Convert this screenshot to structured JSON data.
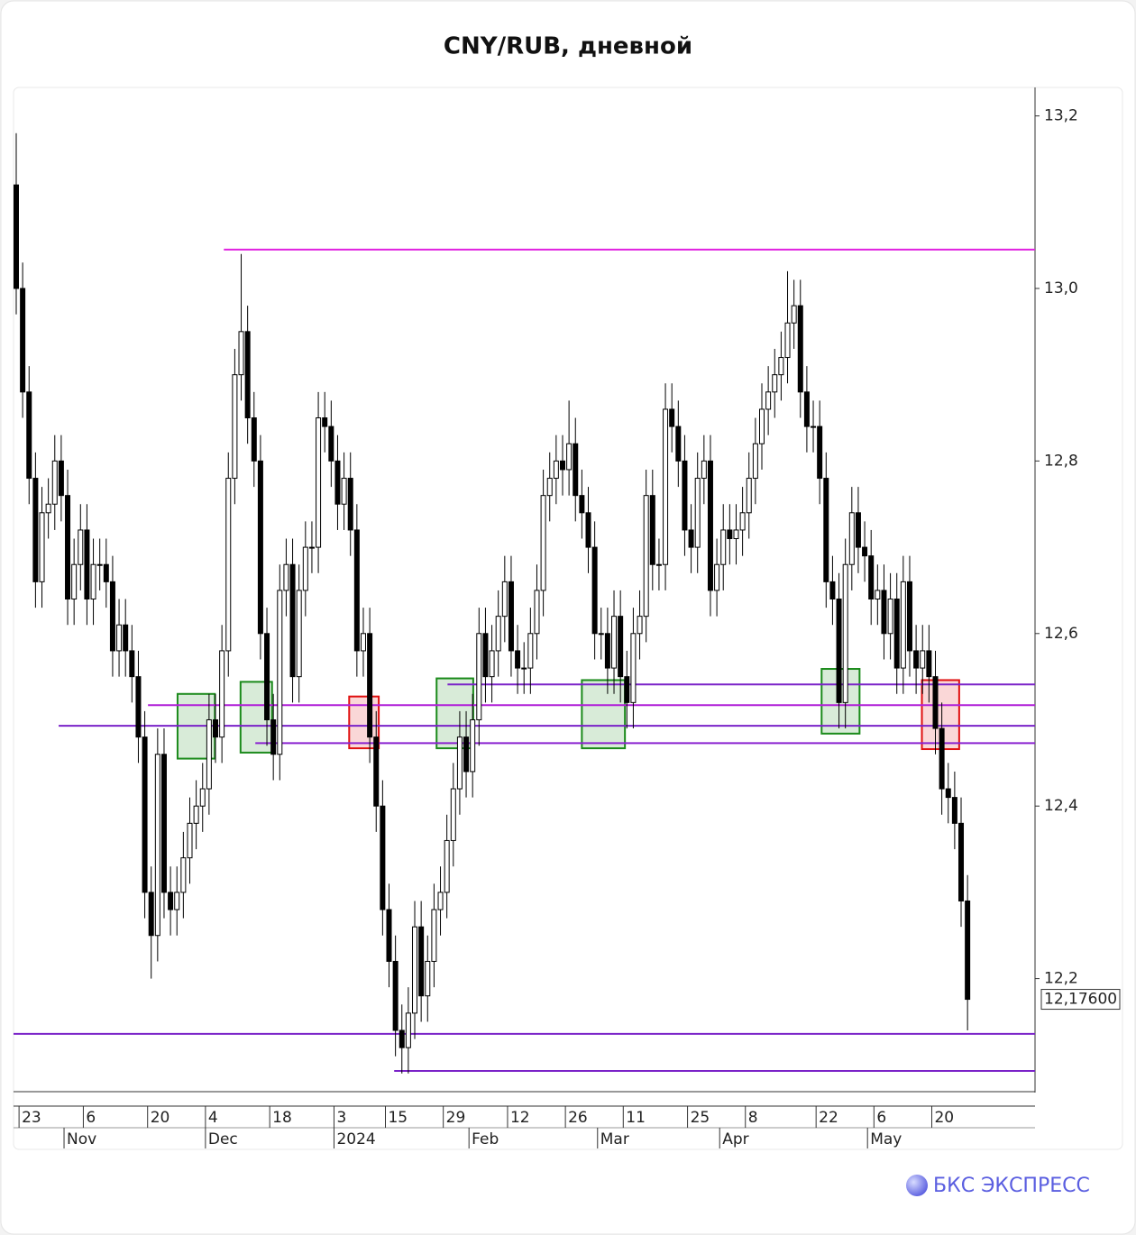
{
  "chart_data": {
    "type": "candlestick",
    "title": "CNY/RUB, дневной",
    "brand": "БКС ЭКСПРЕСС",
    "open": [
      13.12,
      13.0,
      12.88,
      12.78,
      12.66,
      12.74,
      12.75,
      12.8,
      12.76,
      12.64,
      12.68,
      12.72,
      12.64,
      12.68,
      12.68,
      12.66,
      12.58,
      12.61,
      12.58,
      12.55,
      12.48,
      12.3,
      12.25,
      12.46,
      12.3,
      12.28,
      12.3,
      12.34,
      12.38,
      12.4,
      12.42,
      12.5,
      12.48,
      12.58,
      12.78,
      12.9,
      12.95,
      12.85,
      12.8,
      12.6,
      12.5,
      12.46,
      12.65,
      12.68,
      12.55,
      12.65,
      12.7,
      12.7,
      12.85,
      12.84,
      12.8,
      12.75,
      12.78,
      12.72,
      12.58,
      12.6,
      12.48,
      12.4,
      12.28,
      12.22,
      12.14,
      12.12,
      12.16,
      12.26,
      12.18,
      12.22,
      12.28,
      12.3,
      12.36,
      12.42,
      12.48,
      12.44,
      12.5,
      12.6,
      12.55,
      12.58,
      12.62,
      12.66,
      12.58,
      12.56,
      12.56,
      12.6,
      12.65,
      12.76,
      12.78,
      12.8,
      12.79,
      12.82,
      12.76,
      12.74,
      12.7,
      12.6,
      12.6,
      12.56,
      12.62,
      12.55,
      12.52,
      12.6,
      12.62,
      12.76,
      12.68,
      12.68,
      12.86,
      12.84,
      12.8,
      12.72,
      12.7,
      12.78,
      12.8,
      12.65,
      12.68,
      12.72,
      12.71,
      12.72,
      12.74,
      12.78,
      12.82,
      12.86,
      12.88,
      12.9,
      12.92,
      12.96,
      12.98,
      12.88,
      12.84,
      12.84,
      12.78,
      12.66,
      12.64,
      12.52,
      12.68,
      12.74,
      12.7,
      12.69,
      12.64,
      12.65,
      12.6,
      12.64,
      12.56,
      12.66,
      12.58,
      12.56,
      12.58,
      12.55,
      12.49,
      12.42,
      12.41,
      12.38,
      12.29
    ],
    "high": [
      13.18,
      13.03,
      12.91,
      12.81,
      12.77,
      12.78,
      12.83,
      12.83,
      12.79,
      12.71,
      12.75,
      12.75,
      12.71,
      12.71,
      12.71,
      12.69,
      12.64,
      12.64,
      12.61,
      12.58,
      12.51,
      12.33,
      12.49,
      12.49,
      12.33,
      12.33,
      12.37,
      12.41,
      12.43,
      12.45,
      12.53,
      12.53,
      12.61,
      12.81,
      12.93,
      13.04,
      12.98,
      12.88,
      12.83,
      12.63,
      12.53,
      12.68,
      12.71,
      12.71,
      12.68,
      12.73,
      12.73,
      12.88,
      12.88,
      12.87,
      12.83,
      12.81,
      12.81,
      12.75,
      12.63,
      12.63,
      12.51,
      12.43,
      12.31,
      12.25,
      12.17,
      12.19,
      12.29,
      12.29,
      12.25,
      12.31,
      12.33,
      12.39,
      12.45,
      12.51,
      12.51,
      12.53,
      12.63,
      12.63,
      12.61,
      12.65,
      12.69,
      12.69,
      12.61,
      12.59,
      12.63,
      12.68,
      12.79,
      12.81,
      12.83,
      12.83,
      12.87,
      12.85,
      12.79,
      12.77,
      12.73,
      12.63,
      12.63,
      12.65,
      12.65,
      12.58,
      12.63,
      12.65,
      12.79,
      12.79,
      12.71,
      12.89,
      12.89,
      12.87,
      12.83,
      12.75,
      12.81,
      12.83,
      12.83,
      12.71,
      12.75,
      12.75,
      12.75,
      12.77,
      12.81,
      12.85,
      12.89,
      12.91,
      12.93,
      12.95,
      13.02,
      13.01,
      13.01,
      12.91,
      12.87,
      12.87,
      12.81,
      12.69,
      12.67,
      12.71,
      12.77,
      12.77,
      12.73,
      12.72,
      12.68,
      12.68,
      12.67,
      12.67,
      12.69,
      12.69,
      12.61,
      12.61,
      12.61,
      12.58,
      12.52,
      12.45,
      12.44,
      12.41,
      12.32
    ],
    "low": [
      12.97,
      12.85,
      12.75,
      12.63,
      12.63,
      12.71,
      12.72,
      12.73,
      12.61,
      12.61,
      12.65,
      12.61,
      12.61,
      12.65,
      12.63,
      12.55,
      12.55,
      12.55,
      12.52,
      12.45,
      12.27,
      12.2,
      12.22,
      12.27,
      12.25,
      12.25,
      12.27,
      12.31,
      12.35,
      12.37,
      12.39,
      12.45,
      12.45,
      12.55,
      12.75,
      12.87,
      12.82,
      12.77,
      12.57,
      12.47,
      12.43,
      12.43,
      12.62,
      12.52,
      12.52,
      12.62,
      12.67,
      12.67,
      12.81,
      12.77,
      12.72,
      12.72,
      12.69,
      12.55,
      12.55,
      12.45,
      12.37,
      12.25,
      12.19,
      12.11,
      12.09,
      12.09,
      12.13,
      12.15,
      12.15,
      12.19,
      12.25,
      12.27,
      12.33,
      12.39,
      12.41,
      12.41,
      12.47,
      12.52,
      12.52,
      12.55,
      12.59,
      12.55,
      12.53,
      12.53,
      12.53,
      12.57,
      12.62,
      12.73,
      12.75,
      12.76,
      12.76,
      12.73,
      12.71,
      12.67,
      12.57,
      12.57,
      12.53,
      12.53,
      12.52,
      12.49,
      12.49,
      12.57,
      12.59,
      12.65,
      12.65,
      12.65,
      12.81,
      12.77,
      12.69,
      12.67,
      12.67,
      12.75,
      12.62,
      12.62,
      12.65,
      12.68,
      12.68,
      12.69,
      12.71,
      12.75,
      12.79,
      12.83,
      12.85,
      12.87,
      12.89,
      12.93,
      12.85,
      12.81,
      12.81,
      12.75,
      12.63,
      12.61,
      12.49,
      12.49,
      12.65,
      12.67,
      12.66,
      12.61,
      12.61,
      12.57,
      12.57,
      12.53,
      12.53,
      12.55,
      12.53,
      12.53,
      12.52,
      12.46,
      12.39,
      12.38,
      12.35,
      12.26,
      12.14
    ],
    "close": [
      13.0,
      12.88,
      12.78,
      12.66,
      12.74,
      12.75,
      12.8,
      12.76,
      12.64,
      12.68,
      12.72,
      12.64,
      12.68,
      12.68,
      12.66,
      12.58,
      12.61,
      12.58,
      12.55,
      12.48,
      12.3,
      12.25,
      12.46,
      12.3,
      12.28,
      12.3,
      12.34,
      12.38,
      12.4,
      12.42,
      12.5,
      12.48,
      12.58,
      12.78,
      12.9,
      12.95,
      12.85,
      12.8,
      12.6,
      12.5,
      12.46,
      12.65,
      12.68,
      12.55,
      12.65,
      12.7,
      12.7,
      12.85,
      12.84,
      12.8,
      12.75,
      12.78,
      12.72,
      12.58,
      12.6,
      12.48,
      12.4,
      12.28,
      12.22,
      12.14,
      12.12,
      12.16,
      12.26,
      12.18,
      12.22,
      12.28,
      12.3,
      12.36,
      12.42,
      12.48,
      12.44,
      12.5,
      12.6,
      12.55,
      12.58,
      12.62,
      12.66,
      12.58,
      12.56,
      12.56,
      12.6,
      12.65,
      12.76,
      12.78,
      12.8,
      12.79,
      12.82,
      12.76,
      12.74,
      12.7,
      12.6,
      12.6,
      12.56,
      12.62,
      12.55,
      12.52,
      12.6,
      12.62,
      12.76,
      12.68,
      12.68,
      12.86,
      12.84,
      12.8,
      12.72,
      12.7,
      12.78,
      12.8,
      12.65,
      12.68,
      12.72,
      12.71,
      12.72,
      12.74,
      12.78,
      12.82,
      12.86,
      12.88,
      12.9,
      12.92,
      12.96,
      12.98,
      12.88,
      12.84,
      12.84,
      12.78,
      12.66,
      12.64,
      12.52,
      12.68,
      12.74,
      12.7,
      12.69,
      12.64,
      12.65,
      12.6,
      12.64,
      12.56,
      12.66,
      12.58,
      12.56,
      12.58,
      12.55,
      12.49,
      12.42,
      12.41,
      12.38,
      12.29,
      12.176
    ],
    "last_price": {
      "value": 12.176,
      "label": "12,17600"
    },
    "xlim": [
      -0.42,
      158.5
    ],
    "ylim": [
      12.07,
      13.233
    ],
    "yticks": [
      {
        "value": 12.2,
        "label": "12,2"
      },
      {
        "value": 12.4,
        "label": "12,4"
      },
      {
        "value": 12.6,
        "label": "12,6"
      },
      {
        "value": 12.8,
        "label": "12,8"
      },
      {
        "value": 13.0,
        "label": "13,0"
      },
      {
        "value": 13.2,
        "label": "13,2"
      }
    ],
    "xticks": [
      {
        "value": 1,
        "label": "23"
      },
      {
        "value": 11,
        "label": "6"
      },
      {
        "value": 21,
        "label": "20"
      },
      {
        "value": 30,
        "label": "4"
      },
      {
        "value": 40,
        "label": "18"
      },
      {
        "value": 50,
        "label": "3"
      },
      {
        "value": 58,
        "label": "15"
      },
      {
        "value": 67,
        "label": "29"
      },
      {
        "value": 77,
        "label": "12"
      },
      {
        "value": 86,
        "label": "26"
      },
      {
        "value": 95,
        "label": "11"
      },
      {
        "value": 105,
        "label": "25"
      },
      {
        "value": 114,
        "label": "8"
      },
      {
        "value": 125,
        "label": "22"
      },
      {
        "value": 134,
        "label": "6"
      },
      {
        "value": 143,
        "label": "20"
      }
    ],
    "month_ticks": [
      {
        "value": 8,
        "label": "Nov"
      },
      {
        "value": 30,
        "label": "Dec"
      },
      {
        "value": 50,
        "label": "2024"
      },
      {
        "value": 71,
        "label": "Feb"
      },
      {
        "value": 91,
        "label": "Mar"
      },
      {
        "value": 110,
        "label": "Apr"
      },
      {
        "value": 133,
        "label": "May"
      }
    ],
    "levels": [
      {
        "y": 13.045,
        "x0": 32.3,
        "color": "#e020e0"
      },
      {
        "y": 12.541,
        "x0": 67.1,
        "color": "#7a22c8"
      },
      {
        "y": 12.517,
        "x0": 20.5,
        "color": "#b020d8"
      },
      {
        "y": 12.493,
        "x0": 6.6,
        "color": "#7a22c8"
      },
      {
        "y": 12.473,
        "x0": 37.2,
        "color": "#8a22d0"
      },
      {
        "y": 12.136,
        "x0": -0.42,
        "color": "#7a22c8"
      },
      {
        "y": 12.093,
        "x0": 58.8,
        "color": "#7a22c8"
      }
    ],
    "zones": [
      {
        "x": [
          25.1,
          30.9
        ],
        "y": [
          12.455,
          12.53
        ],
        "color": "#1a8a1a"
      },
      {
        "x": [
          34.9,
          39.8
        ],
        "y": [
          12.462,
          12.544
        ],
        "color": "#1a8a1a"
      },
      {
        "x": [
          51.8,
          56.4
        ],
        "y": [
          12.467,
          12.527
        ],
        "color": "#e01010"
      },
      {
        "x": [
          65.4,
          71.1
        ],
        "y": [
          12.467,
          12.548
        ],
        "color": "#1a8a1a"
      },
      {
        "x": [
          88.0,
          94.7
        ],
        "y": [
          12.467,
          12.546
        ],
        "color": "#1a8a1a"
      },
      {
        "x": [
          125.3,
          131.2
        ],
        "y": [
          12.484,
          12.559
        ],
        "color": "#1a8a1a"
      },
      {
        "x": [
          140.9,
          146.7
        ],
        "y": [
          12.466,
          12.546
        ],
        "color": "#e01010"
      }
    ]
  }
}
